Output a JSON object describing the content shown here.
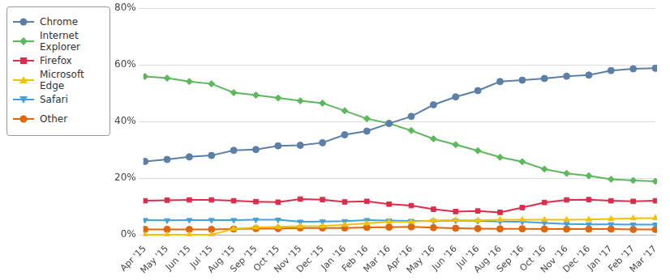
{
  "chart_data": {
    "type": "line",
    "categories": [
      "Apr '15",
      "May '15",
      "Jun '15",
      "Jul '15",
      "Aug '15",
      "Sep '15",
      "Oct '15",
      "Nov '15",
      "Dec '15",
      "Jan '16",
      "Feb '16",
      "Mar '16",
      "Apr '16",
      "May '16",
      "Jun '16",
      "Jul '16",
      "Aug '16",
      "Sep '16",
      "Oct '16",
      "Nov '16",
      "Dec '16",
      "Jan '17",
      "Feb '17",
      "Mar '17"
    ],
    "series": [
      {
        "name": "Chrome",
        "color": "#5b7fa6",
        "marker": "circle",
        "values": [
          25.9,
          26.6,
          27.5,
          28.0,
          29.8,
          30.1,
          31.4,
          31.6,
          32.5,
          35.3,
          36.6,
          39.3,
          41.8,
          45.9,
          48.7,
          50.9,
          54.1,
          54.6,
          55.2,
          56.0,
          56.4,
          58.0,
          58.6,
          58.8
        ]
      },
      {
        "name": "Internet Explorer",
        "color": "#5cb85c",
        "marker": "diamond",
        "values": [
          55.9,
          55.3,
          54.1,
          53.3,
          50.2,
          49.3,
          48.3,
          47.3,
          46.5,
          43.8,
          41.0,
          39.3,
          36.8,
          33.9,
          31.8,
          29.7,
          27.4,
          25.8,
          23.2,
          21.7,
          20.8,
          19.6,
          19.2,
          18.9
        ]
      },
      {
        "name": "Firefox",
        "color": "#dc2d4b",
        "marker": "square",
        "values": [
          12.0,
          12.2,
          12.3,
          12.3,
          12.0,
          11.7,
          11.5,
          12.6,
          12.4,
          11.6,
          11.8,
          10.8,
          10.3,
          9.0,
          8.2,
          8.4,
          7.9,
          9.6,
          11.4,
          12.3,
          12.4,
          12.0,
          11.8,
          12.0
        ]
      },
      {
        "name": "Microsoft Edge",
        "color": "#f2c200",
        "marker": "triangle",
        "values": [
          0,
          0,
          0,
          0,
          2.1,
          2.6,
          2.8,
          3.0,
          3.1,
          3.5,
          4.0,
          4.6,
          4.6,
          5.0,
          5.2,
          5.1,
          5.3,
          5.3,
          5.3,
          5.3,
          5.4,
          5.6,
          5.8,
          5.9
        ]
      },
      {
        "name": "Safari",
        "color": "#45a0dc",
        "marker": "triangle-down",
        "values": [
          5.2,
          5.1,
          5.2,
          5.2,
          5.2,
          5.3,
          5.3,
          4.6,
          4.7,
          4.8,
          5.2,
          5.0,
          4.9,
          4.9,
          5.0,
          4.9,
          4.7,
          4.6,
          4.2,
          3.8,
          3.7,
          3.7,
          3.6,
          3.6
        ]
      },
      {
        "name": "Other",
        "color": "#e0660c",
        "marker": "circle",
        "values": [
          1.9,
          1.9,
          1.9,
          1.9,
          2.0,
          2.2,
          2.2,
          2.4,
          2.4,
          2.4,
          2.6,
          2.7,
          2.8,
          2.5,
          2.3,
          2.2,
          2.1,
          2.1,
          2.0,
          2.0,
          2.0,
          2.0,
          1.9,
          1.9
        ]
      }
    ],
    "ylim": [
      0,
      80
    ],
    "yticks": [
      {
        "value": 0,
        "label": "0%"
      },
      {
        "value": 20,
        "label": "20%"
      },
      {
        "value": 40,
        "label": "40%"
      },
      {
        "value": 60,
        "label": "60%"
      },
      {
        "value": 80,
        "label": "80%"
      }
    ],
    "grid": true,
    "legend": "top-left"
  }
}
